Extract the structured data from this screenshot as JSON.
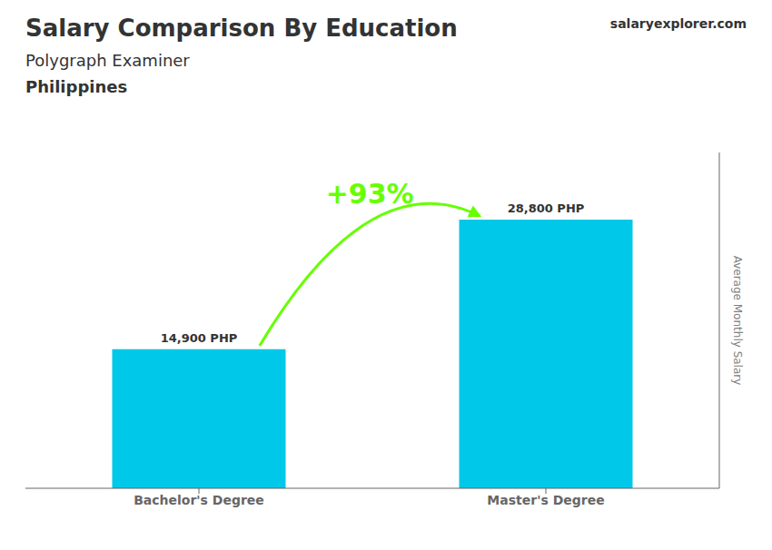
{
  "chart_data": {
    "type": "bar",
    "title": "Salary Comparison By Education",
    "subtitle": "Polygraph Examiner",
    "categories": [
      "Bachelor's Degree",
      "Master's Degree"
    ],
    "values": [
      14900,
      28800
    ],
    "value_labels": [
      "14,900 PHP",
      "28,800 PHP"
    ],
    "data_labels": true,
    "color": "#00C8E8",
    "ylabel": "Average Monthly Salary",
    "ylim": [
      0,
      36000
    ],
    "tick_labels": "x",
    "grid": false,
    "annotations": [
      {
        "text": "Philippines"
      },
      {
        "text": "salaryexplorer.com"
      },
      {
        "text": "+93%",
        "color": "#66FF00"
      }
    ]
  }
}
